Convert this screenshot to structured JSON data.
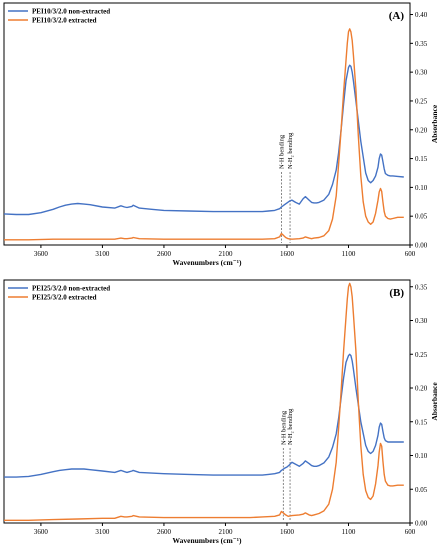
{
  "chart_data": [
    {
      "type": "line",
      "panel_label": "(A)",
      "xlabel": "Wavenumbers (cm⁻¹)",
      "ylabel": "Absorbance",
      "xlim": [
        3900,
        600
      ],
      "x_reversed": true,
      "ylim": [
        0,
        0.42
      ],
      "x_ticks": [
        3600,
        3100,
        2600,
        2100,
        1600,
        1100,
        600
      ],
      "y_ticks": [
        0.0,
        0.05,
        0.1,
        0.15,
        0.2,
        0.25,
        0.3,
        0.35,
        0.4
      ],
      "y_tick_labels": [
        "0.00",
        "0.05",
        "0.10",
        "0.15",
        "0.20",
        "0.25",
        "0.30",
        "0.35",
        "0.40"
      ],
      "legend_position": "top-left",
      "annotations": [
        {
          "text": "N-H bending",
          "x": 1645
        },
        {
          "text": "N-H₂ bending",
          "x": 1575
        }
      ],
      "series": [
        {
          "name": "PEI10/3/2.0 non-extracted",
          "color": "#4472c4",
          "x": [
            3900,
            3800,
            3700,
            3600,
            3500,
            3450,
            3400,
            3350,
            3300,
            3250,
            3200,
            3100,
            3000,
            2950,
            2920,
            2900,
            2860,
            2850,
            2800,
            2700,
            2600,
            2400,
            2200,
            2000,
            1900,
            1800,
            1750,
            1700,
            1660,
            1645,
            1620,
            1600,
            1580,
            1560,
            1530,
            1500,
            1470,
            1450,
            1420,
            1400,
            1380,
            1360,
            1340,
            1300,
            1260,
            1230,
            1200,
            1180,
            1160,
            1140,
            1120,
            1100,
            1090,
            1080,
            1070,
            1060,
            1040,
            1000,
            960,
            940,
            920,
            900,
            880,
            860,
            850,
            840,
            830,
            820,
            810,
            800,
            780,
            760,
            740,
            700,
            650
          ],
          "y": [
            0.054,
            0.053,
            0.053,
            0.056,
            0.062,
            0.066,
            0.069,
            0.071,
            0.072,
            0.071,
            0.07,
            0.066,
            0.064,
            0.068,
            0.066,
            0.065,
            0.067,
            0.069,
            0.064,
            0.062,
            0.06,
            0.059,
            0.058,
            0.058,
            0.058,
            0.058,
            0.059,
            0.06,
            0.063,
            0.066,
            0.07,
            0.073,
            0.076,
            0.078,
            0.074,
            0.071,
            0.08,
            0.084,
            0.078,
            0.074,
            0.073,
            0.073,
            0.074,
            0.078,
            0.088,
            0.105,
            0.13,
            0.16,
            0.2,
            0.245,
            0.285,
            0.308,
            0.312,
            0.31,
            0.3,
            0.285,
            0.25,
            0.18,
            0.125,
            0.112,
            0.108,
            0.112,
            0.12,
            0.135,
            0.15,
            0.158,
            0.156,
            0.145,
            0.132,
            0.124,
            0.121,
            0.12,
            0.12,
            0.119,
            0.118
          ]
        },
        {
          "name": "PEI10/3/2.0 extracted",
          "color": "#ed7d31",
          "x": [
            3900,
            3700,
            3500,
            3300,
            3100,
            3000,
            2950,
            2920,
            2900,
            2860,
            2850,
            2800,
            2600,
            2400,
            2200,
            2000,
            1900,
            1800,
            1700,
            1660,
            1645,
            1630,
            1610,
            1590,
            1560,
            1500,
            1470,
            1450,
            1420,
            1400,
            1380,
            1340,
            1300,
            1260,
            1230,
            1200,
            1180,
            1160,
            1140,
            1120,
            1110,
            1100,
            1090,
            1080,
            1070,
            1060,
            1040,
            1020,
            1000,
            980,
            960,
            940,
            920,
            900,
            880,
            860,
            850,
            840,
            830,
            820,
            810,
            800,
            780,
            760,
            740,
            700,
            650
          ],
          "y": [
            0.009,
            0.009,
            0.01,
            0.01,
            0.01,
            0.01,
            0.012,
            0.011,
            0.011,
            0.012,
            0.013,
            0.011,
            0.01,
            0.01,
            0.01,
            0.01,
            0.01,
            0.01,
            0.011,
            0.014,
            0.02,
            0.017,
            0.013,
            0.011,
            0.01,
            0.011,
            0.012,
            0.014,
            0.012,
            0.011,
            0.012,
            0.013,
            0.016,
            0.025,
            0.045,
            0.085,
            0.14,
            0.2,
            0.265,
            0.32,
            0.35,
            0.37,
            0.375,
            0.37,
            0.355,
            0.33,
            0.27,
            0.19,
            0.12,
            0.075,
            0.05,
            0.04,
            0.036,
            0.04,
            0.055,
            0.078,
            0.092,
            0.098,
            0.093,
            0.075,
            0.058,
            0.05,
            0.046,
            0.045,
            0.046,
            0.048,
            0.048
          ]
        }
      ]
    },
    {
      "type": "line",
      "panel_label": "(B)",
      "xlabel": "Wavenumbers (cm⁻¹)",
      "ylabel": "Absorbance",
      "xlim": [
        3900,
        600
      ],
      "x_reversed": true,
      "ylim": [
        0,
        0.36
      ],
      "x_ticks": [
        3600,
        3100,
        2600,
        2100,
        1600,
        1100,
        600
      ],
      "y_ticks": [
        0.0,
        0.05,
        0.1,
        0.15,
        0.2,
        0.25,
        0.3,
        0.35
      ],
      "y_tick_labels": [
        "0.00",
        "0.05",
        "0.10",
        "0.15",
        "0.20",
        "0.25",
        "0.30",
        "0.35"
      ],
      "legend_position": "top-left",
      "annotations": [
        {
          "text": "N-H bending",
          "x": 1630
        },
        {
          "text": "N-H₂ bending",
          "x": 1575
        }
      ],
      "series": [
        {
          "name": "PEI25/3/2.0 non-extracted",
          "color": "#4472c4",
          "x": [
            3900,
            3800,
            3700,
            3600,
            3500,
            3450,
            3400,
            3350,
            3300,
            3250,
            3200,
            3100,
            3000,
            2950,
            2920,
            2900,
            2860,
            2850,
            2800,
            2700,
            2600,
            2400,
            2200,
            2000,
            1900,
            1800,
            1750,
            1700,
            1660,
            1645,
            1620,
            1600,
            1580,
            1560,
            1530,
            1500,
            1470,
            1450,
            1420,
            1400,
            1380,
            1360,
            1340,
            1300,
            1260,
            1230,
            1200,
            1180,
            1160,
            1140,
            1120,
            1100,
            1090,
            1080,
            1070,
            1060,
            1040,
            1000,
            960,
            940,
            920,
            900,
            880,
            860,
            850,
            840,
            830,
            820,
            810,
            800,
            780,
            760,
            740,
            700,
            650
          ],
          "y": [
            0.068,
            0.068,
            0.069,
            0.072,
            0.076,
            0.078,
            0.079,
            0.08,
            0.08,
            0.08,
            0.079,
            0.077,
            0.075,
            0.078,
            0.076,
            0.075,
            0.077,
            0.078,
            0.075,
            0.074,
            0.073,
            0.072,
            0.071,
            0.071,
            0.071,
            0.071,
            0.072,
            0.073,
            0.075,
            0.078,
            0.081,
            0.083,
            0.086,
            0.09,
            0.087,
            0.084,
            0.088,
            0.092,
            0.088,
            0.085,
            0.084,
            0.084,
            0.085,
            0.089,
            0.098,
            0.112,
            0.132,
            0.155,
            0.185,
            0.215,
            0.238,
            0.248,
            0.25,
            0.248,
            0.24,
            0.228,
            0.2,
            0.15,
            0.115,
            0.106,
            0.103,
            0.106,
            0.115,
            0.13,
            0.142,
            0.148,
            0.146,
            0.136,
            0.126,
            0.122,
            0.12,
            0.12,
            0.12,
            0.12,
            0.12
          ]
        },
        {
          "name": "PEI25/3/2.0 extracted",
          "color": "#ed7d31",
          "x": [
            3900,
            3700,
            3500,
            3300,
            3100,
            3000,
            2950,
            2920,
            2900,
            2860,
            2850,
            2800,
            2600,
            2400,
            2200,
            2000,
            1900,
            1800,
            1700,
            1660,
            1645,
            1630,
            1610,
            1590,
            1560,
            1500,
            1470,
            1450,
            1420,
            1400,
            1380,
            1340,
            1300,
            1260,
            1230,
            1200,
            1180,
            1160,
            1140,
            1120,
            1110,
            1100,
            1090,
            1080,
            1070,
            1060,
            1040,
            1020,
            1000,
            980,
            960,
            940,
            920,
            900,
            880,
            860,
            850,
            840,
            830,
            820,
            810,
            800,
            780,
            760,
            740,
            700,
            650
          ],
          "y": [
            0.004,
            0.004,
            0.005,
            0.006,
            0.007,
            0.007,
            0.01,
            0.009,
            0.009,
            0.01,
            0.011,
            0.009,
            0.008,
            0.008,
            0.008,
            0.008,
            0.008,
            0.009,
            0.01,
            0.012,
            0.017,
            0.015,
            0.012,
            0.01,
            0.011,
            0.012,
            0.013,
            0.015,
            0.012,
            0.011,
            0.012,
            0.014,
            0.018,
            0.028,
            0.05,
            0.09,
            0.14,
            0.195,
            0.255,
            0.305,
            0.332,
            0.35,
            0.355,
            0.35,
            0.335,
            0.31,
            0.255,
            0.18,
            0.115,
            0.072,
            0.048,
            0.038,
            0.035,
            0.04,
            0.058,
            0.085,
            0.105,
            0.118,
            0.114,
            0.092,
            0.072,
            0.062,
            0.056,
            0.055,
            0.055,
            0.056,
            0.056
          ]
        }
      ]
    }
  ]
}
